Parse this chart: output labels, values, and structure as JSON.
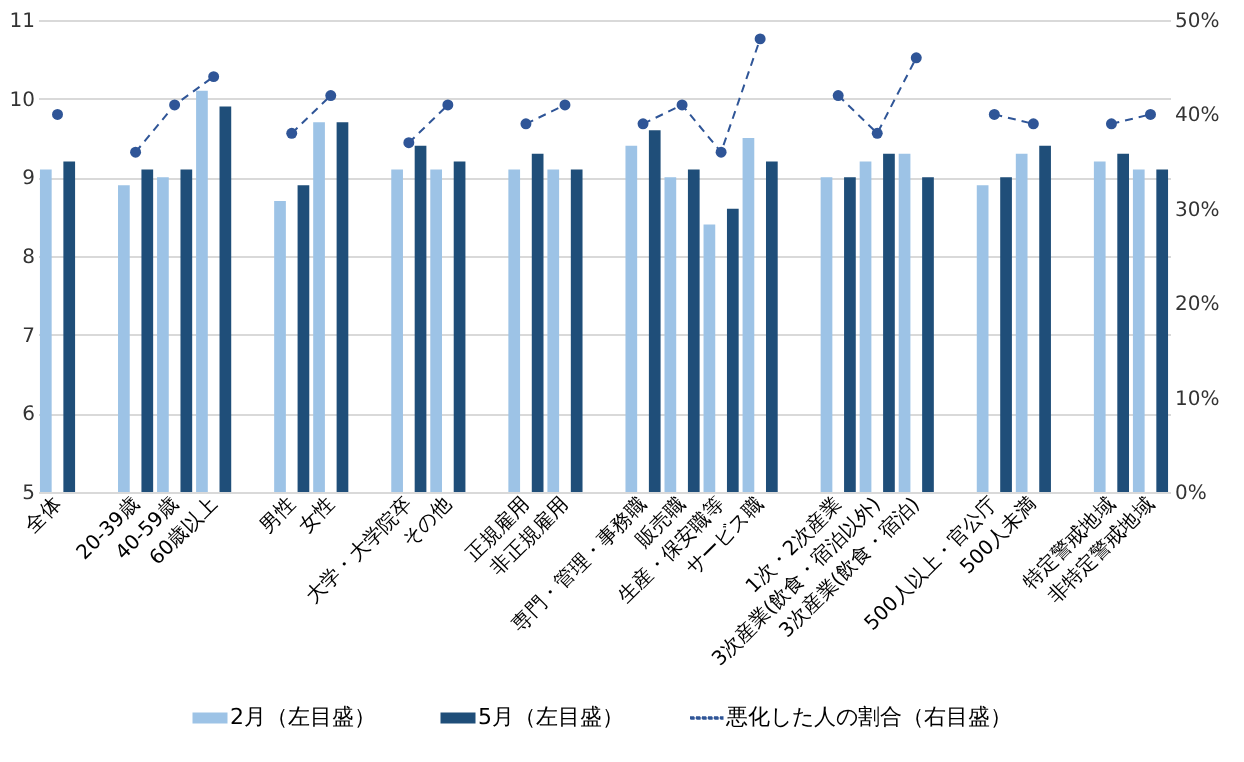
{
  "chart_data": {
    "type": "bar",
    "categories": [
      "全体",
      null,
      "20-39歳",
      "40-59歳",
      "60歳以上",
      null,
      "男性",
      "女性",
      null,
      "大学・大学院卒",
      "その他",
      null,
      "正規雇用",
      "非正規雇用",
      null,
      "専門・管理・事務職",
      "販売職",
      "生産・保安職等",
      "サービス職",
      null,
      "1次・2次産業",
      "3次産業(飲食・宿泊以外)",
      "3次産業(飲食・宿泊)",
      null,
      "500人以上・官公庁",
      "500人未満",
      null,
      "特定警戒地域",
      "非特定警戒地域"
    ],
    "series": [
      {
        "name": "2月（左目盛）",
        "color": "#9dc3e6",
        "values": [
          9.1,
          null,
          8.9,
          9.0,
          10.1,
          null,
          8.7,
          9.7,
          null,
          9.1,
          9.1,
          null,
          9.1,
          9.1,
          null,
          9.4,
          9.0,
          8.4,
          9.5,
          null,
          9.0,
          9.2,
          9.3,
          null,
          8.9,
          9.3,
          null,
          9.2,
          9.1
        ]
      },
      {
        "name": "5月（左目盛）",
        "color": "#1f4e79",
        "values": [
          9.2,
          null,
          9.1,
          9.1,
          9.9,
          null,
          8.9,
          9.7,
          null,
          9.4,
          9.2,
          null,
          9.3,
          9.1,
          null,
          9.6,
          9.1,
          8.6,
          9.2,
          null,
          9.0,
          9.3,
          9.0,
          null,
          9.0,
          9.4,
          null,
          9.3,
          9.1
        ]
      },
      {
        "name": "悪化した人の割合（右目盛）",
        "type": "line",
        "axis": "y2",
        "color": "#2f5597",
        "marker": "circle",
        "line_style": "dashed",
        "values": [
          40,
          null,
          36,
          41,
          44,
          null,
          38,
          42,
          null,
          37,
          41,
          null,
          39,
          41,
          null,
          39,
          41,
          36,
          48,
          null,
          42,
          38,
          46,
          null,
          40,
          39,
          null,
          39,
          40
        ]
      }
    ],
    "ylim": [
      5,
      11
    ],
    "yticks": [
      5,
      6,
      7,
      8,
      9,
      10,
      11
    ],
    "y2lim": [
      0,
      50
    ],
    "y2ticks": [
      {
        "value": 0,
        "label": "0%"
      },
      {
        "value": 10,
        "label": "10%"
      },
      {
        "value": 20,
        "label": "20%"
      },
      {
        "value": 30,
        "label": "30%"
      },
      {
        "value": 40,
        "label": "40%"
      },
      {
        "value": 50,
        "label": "50%"
      }
    ],
    "grid": "y",
    "legend": "bottom"
  }
}
